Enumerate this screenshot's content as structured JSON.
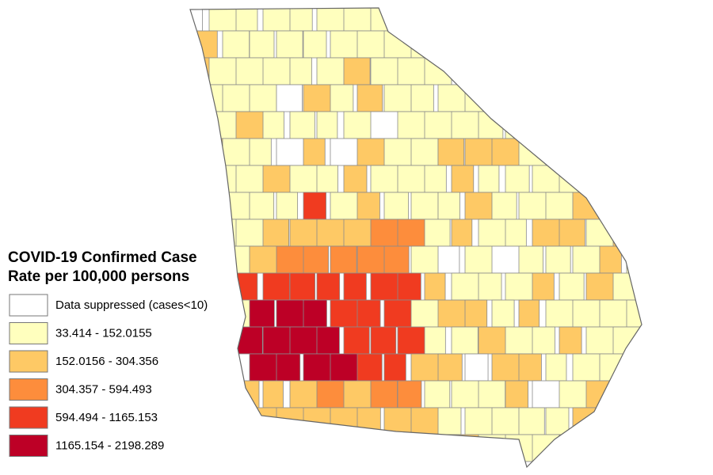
{
  "legend": {
    "title": [
      "COVID-19 Confirmed Case",
      "Rate per 100,000 persons"
    ],
    "entries": [
      {
        "label": "Data suppressed (cases<10)",
        "color": "#ffffff"
      },
      {
        "label": "33.414 - 152.0155",
        "color": "#ffffbe"
      },
      {
        "label": "152.0156 - 304.356",
        "color": "#fec965"
      },
      {
        "label": "304.357 - 594.493",
        "color": "#fd8d3c"
      },
      {
        "label": "594.494 - 1165.153",
        "color": "#f03b20"
      },
      {
        "label": "1165.154 - 2198.289",
        "color": "#bd0026"
      }
    ]
  }
}
